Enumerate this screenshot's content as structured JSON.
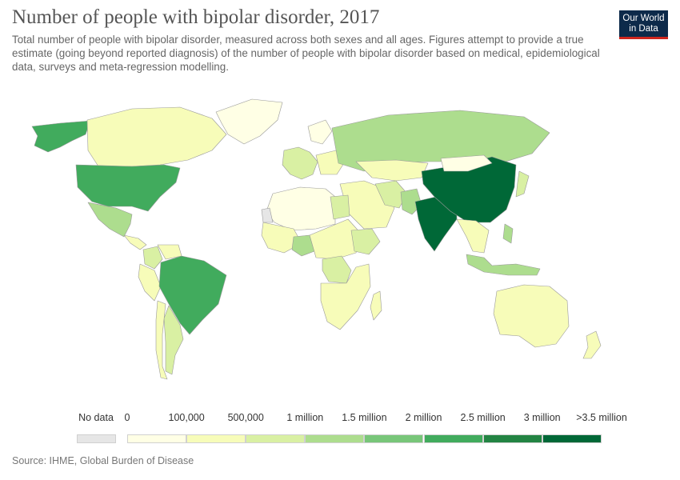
{
  "title": "Number of people with bipolar disorder, 2017",
  "subtitle": "Total number of people with bipolar disorder, measured across both sexes and all ages. Figures attempt to provide a true estimate (going beyond reported diagnosis) of the number of people with bipolar disorder based on medical, epidemiological data, surveys and meta-regression modelling.",
  "logo": {
    "line1": "Our World",
    "line2": "in Data"
  },
  "legend": {
    "no_data_label": "No data",
    "no_data_color": "#e6e6e6",
    "bins": [
      {
        "label": "0",
        "color": "#ffffe5"
      },
      {
        "label": "100,000",
        "color": "#f7fcb9"
      },
      {
        "label": "500,000",
        "color": "#d9f0a3"
      },
      {
        "label": "1 million",
        "color": "#addd8e"
      },
      {
        "label": "1.5 million",
        "color": "#78c679"
      },
      {
        "label": "2 million",
        "color": "#41ab5d"
      },
      {
        "label": "2.5 million",
        "color": "#238443"
      },
      {
        "label": "3 million",
        "color": "#006837"
      }
    ],
    "last_label": ">3.5 million"
  },
  "map_data": {
    "regions": [
      {
        "name": "Alaska",
        "color": "#41ab5d"
      },
      {
        "name": "Canada",
        "color": "#f7fcb9"
      },
      {
        "name": "Greenland",
        "color": "#ffffe5"
      },
      {
        "name": "United States",
        "color": "#41ab5d"
      },
      {
        "name": "Mexico",
        "color": "#addd8e"
      },
      {
        "name": "Central America",
        "color": "#f7fcb9"
      },
      {
        "name": "Colombia",
        "color": "#d9f0a3"
      },
      {
        "name": "Venezuela",
        "color": "#f7fcb9"
      },
      {
        "name": "Peru",
        "color": "#f7fcb9"
      },
      {
        "name": "Brazil",
        "color": "#41ab5d"
      },
      {
        "name": "Argentina",
        "color": "#d9f0a3"
      },
      {
        "name": "Chile",
        "color": "#f7fcb9"
      },
      {
        "name": "Western Europe",
        "color": "#d9f0a3"
      },
      {
        "name": "Eastern Europe",
        "color": "#f7fcb9"
      },
      {
        "name": "Scandinavia",
        "color": "#ffffe5"
      },
      {
        "name": "Russia",
        "color": "#addd8e"
      },
      {
        "name": "Kazakhstan",
        "color": "#f7fcb9"
      },
      {
        "name": "Middle East",
        "color": "#f7fcb9"
      },
      {
        "name": "Iran",
        "color": "#d9f0a3"
      },
      {
        "name": "Pakistan",
        "color": "#addd8e"
      },
      {
        "name": "India",
        "color": "#006837"
      },
      {
        "name": "China",
        "color": "#006837"
      },
      {
        "name": "Mongolia",
        "color": "#ffffe5"
      },
      {
        "name": "Southeast Asia",
        "color": "#f7fcb9"
      },
      {
        "name": "Japan",
        "color": "#d9f0a3"
      },
      {
        "name": "Indonesia",
        "color": "#addd8e"
      },
      {
        "name": "Philippines",
        "color": "#addd8e"
      },
      {
        "name": "Australia",
        "color": "#f7fcb9"
      },
      {
        "name": "New Zealand",
        "color": "#f7fcb9"
      },
      {
        "name": "North Africa",
        "color": "#ffffe5"
      },
      {
        "name": "Western Sahara",
        "color": "#e6e6e6"
      },
      {
        "name": "West Africa",
        "color": "#f7fcb9"
      },
      {
        "name": "Nigeria",
        "color": "#addd8e"
      },
      {
        "name": "Egypt",
        "color": "#d9f0a3"
      },
      {
        "name": "Central Africa",
        "color": "#f7fcb9"
      },
      {
        "name": "DR Congo",
        "color": "#d9f0a3"
      },
      {
        "name": "Ethiopia",
        "color": "#d9f0a3"
      },
      {
        "name": "Southern Africa",
        "color": "#f7fcb9"
      },
      {
        "name": "Madagascar",
        "color": "#f7fcb9"
      }
    ]
  },
  "source": "Source: IHME, Global Burden of Disease"
}
